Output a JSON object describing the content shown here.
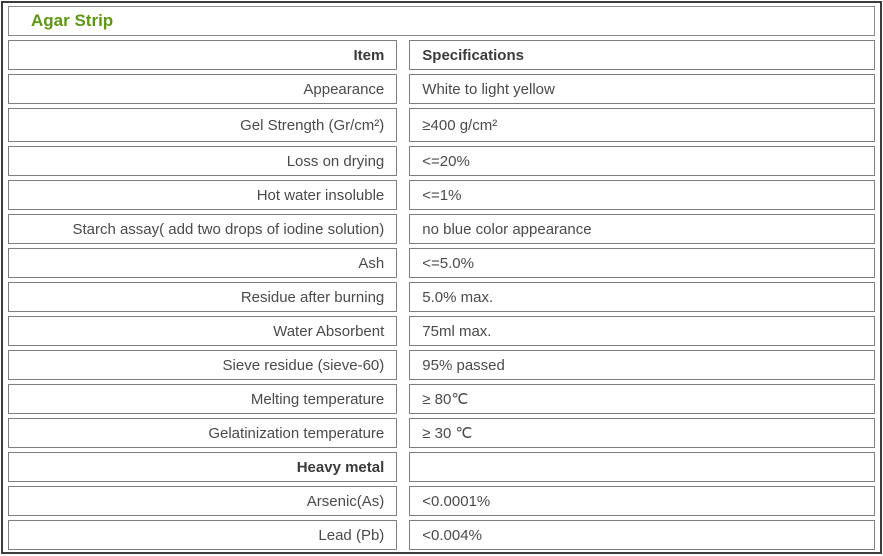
{
  "title": "Agar Strip",
  "colors": {
    "title_green": "#5f9614",
    "cell_border_gray": "#7e7e7e",
    "outer_border_dark": "#3c3c3c",
    "text_gray": "#4a4a4a"
  },
  "headers": {
    "item": "Item",
    "spec": "Specifications"
  },
  "rows": [
    {
      "item": "Appearance",
      "spec": "White to light yellow"
    },
    {
      "item": "Gel Strength (Gr/cm²)",
      "spec": "≥400 g/cm²"
    },
    {
      "item": "Loss on drying",
      "spec": "<=20%"
    },
    {
      "item": "Hot water insoluble",
      "spec": "<=1%"
    },
    {
      "item": "Starch assay( add two drops of iodine solution)",
      "spec": "no blue color appearance"
    },
    {
      "item": "Ash",
      "spec": "<=5.0%"
    },
    {
      "item": "Residue after burning",
      "spec": "5.0% max."
    },
    {
      "item": "Water Absorbent",
      "spec": "75ml max."
    },
    {
      "item": "Sieve residue (sieve-60)",
      "spec": "95% passed"
    },
    {
      "item": "Melting temperature",
      "spec": "≥ 80℃"
    },
    {
      "item": "Gelatinization temperature",
      "spec": "≥ 30 ℃"
    },
    {
      "item": "Heavy metal",
      "spec": ""
    },
    {
      "item": "Arsenic(As)",
      "spec": "<0.0001%"
    },
    {
      "item": "Lead (Pb)",
      "spec": "<0.004%"
    }
  ]
}
